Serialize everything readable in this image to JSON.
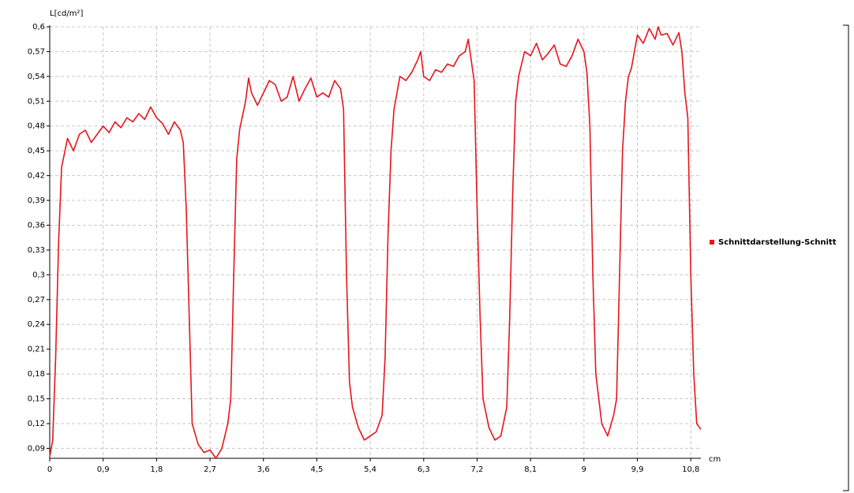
{
  "chart_data": {
    "type": "line",
    "y_axis_label": "L[cd/m²]",
    "x_axis_label": "cm",
    "xlim": [
      0,
      10.97
    ],
    "ylim": [
      0.078,
      0.6
    ],
    "xticks": [
      0,
      {
        "value": 0.9,
        "label": "0,9"
      },
      {
        "value": 1.8,
        "label": "1,8"
      },
      {
        "value": 2.7,
        "label": "2,7"
      },
      {
        "value": 3.6,
        "label": "3,6"
      },
      {
        "value": 4.5,
        "label": "4,5"
      },
      {
        "value": 5.4,
        "label": "5,4"
      },
      {
        "value": 6.3,
        "label": "6,3"
      },
      {
        "value": 7.2,
        "label": "7,2"
      },
      {
        "value": 8.1,
        "label": "8,1"
      },
      9,
      {
        "value": 9.9,
        "label": "9,9"
      },
      {
        "value": 10.8,
        "label": "10,8"
      }
    ],
    "yticks": [
      {
        "value": 0.09,
        "label": "0,09"
      },
      {
        "value": 0.12,
        "label": "0,12"
      },
      {
        "value": 0.15,
        "label": "0,15"
      },
      {
        "value": 0.18,
        "label": "0,18"
      },
      {
        "value": 0.21,
        "label": "0,21"
      },
      {
        "value": 0.24,
        "label": "0,24"
      },
      {
        "value": 0.27,
        "label": "0,27"
      },
      {
        "value": 0.3,
        "label": "0,3"
      },
      {
        "value": 0.33,
        "label": "0,33"
      },
      {
        "value": 0.36,
        "label": "0,36"
      },
      {
        "value": 0.39,
        "label": "0,39"
      },
      {
        "value": 0.42,
        "label": "0,42"
      },
      {
        "value": 0.45,
        "label": "0,45"
      },
      {
        "value": 0.48,
        "label": "0,48"
      },
      {
        "value": 0.51,
        "label": "0,51"
      },
      {
        "value": 0.54,
        "label": "0,54"
      },
      {
        "value": 0.57,
        "label": "0,57"
      },
      {
        "value": 0.6,
        "label": "0,6"
      }
    ],
    "grid": true,
    "legend": "right",
    "x": [
      0,
      0.05,
      0.1,
      0.15,
      0.2,
      0.3,
      0.4,
      0.5,
      0.6,
      0.7,
      0.8,
      0.9,
      1.0,
      1.1,
      1.2,
      1.3,
      1.4,
      1.5,
      1.6,
      1.7,
      1.8,
      1.9,
      2.0,
      2.1,
      2.2,
      2.25,
      2.3,
      2.35,
      2.4,
      2.5,
      2.6,
      2.7,
      2.8,
      2.9,
      3.0,
      3.05,
      3.1,
      3.15,
      3.2,
      3.3,
      3.35,
      3.4,
      3.5,
      3.6,
      3.7,
      3.8,
      3.9,
      4.0,
      4.1,
      4.2,
      4.3,
      4.4,
      4.5,
      4.6,
      4.7,
      4.8,
      4.9,
      4.95,
      5.0,
      5.05,
      5.1,
      5.2,
      5.3,
      5.4,
      5.5,
      5.6,
      5.65,
      5.7,
      5.75,
      5.8,
      5.9,
      6.0,
      6.1,
      6.2,
      6.25,
      6.3,
      6.4,
      6.5,
      6.6,
      6.7,
      6.8,
      6.9,
      7.0,
      7.05,
      7.1,
      7.15,
      7.2,
      7.25,
      7.3,
      7.4,
      7.5,
      7.6,
      7.7,
      7.75,
      7.8,
      7.85,
      7.9,
      8.0,
      8.1,
      8.2,
      8.3,
      8.4,
      8.5,
      8.6,
      8.7,
      8.8,
      8.9,
      9.0,
      9.05,
      9.1,
      9.15,
      9.2,
      9.3,
      9.4,
      9.5,
      9.55,
      9.6,
      9.65,
      9.7,
      9.75,
      9.8,
      9.9,
      10.0,
      10.1,
      10.2,
      10.25,
      10.3,
      10.4,
      10.5,
      10.6,
      10.65,
      10.7,
      10.75,
      10.8,
      10.85,
      10.9,
      10.97
    ],
    "series": [
      {
        "name": "Schnittdarstellung-Schnitt",
        "color": "#e8141c",
        "values": [
          0.08,
          0.1,
          0.2,
          0.34,
          0.43,
          0.465,
          0.45,
          0.47,
          0.475,
          0.46,
          0.47,
          0.48,
          0.472,
          0.485,
          0.478,
          0.49,
          0.485,
          0.495,
          0.488,
          0.503,
          0.49,
          0.483,
          0.47,
          0.485,
          0.475,
          0.46,
          0.38,
          0.25,
          0.12,
          0.095,
          0.085,
          0.088,
          0.078,
          0.09,
          0.12,
          0.15,
          0.3,
          0.44,
          0.476,
          0.51,
          0.538,
          0.52,
          0.505,
          0.52,
          0.535,
          0.53,
          0.51,
          0.515,
          0.54,
          0.51,
          0.525,
          0.538,
          0.515,
          0.52,
          0.515,
          0.535,
          0.525,
          0.5,
          0.3,
          0.17,
          0.14,
          0.115,
          0.1,
          0.105,
          0.11,
          0.13,
          0.2,
          0.35,
          0.45,
          0.5,
          0.54,
          0.535,
          0.545,
          0.56,
          0.57,
          0.54,
          0.535,
          0.548,
          0.545,
          0.555,
          0.552,
          0.565,
          0.57,
          0.585,
          0.56,
          0.535,
          0.38,
          0.25,
          0.15,
          0.115,
          0.1,
          0.105,
          0.14,
          0.25,
          0.4,
          0.51,
          0.54,
          0.57,
          0.565,
          0.58,
          0.56,
          0.568,
          0.578,
          0.555,
          0.552,
          0.565,
          0.585,
          0.57,
          0.545,
          0.48,
          0.3,
          0.18,
          0.12,
          0.105,
          0.13,
          0.15,
          0.3,
          0.45,
          0.51,
          0.54,
          0.55,
          0.59,
          0.58,
          0.598,
          0.585,
          0.6,
          0.59,
          0.592,
          0.578,
          0.593,
          0.57,
          0.52,
          0.49,
          0.3,
          0.18,
          0.12,
          0.113
        ]
      }
    ]
  }
}
